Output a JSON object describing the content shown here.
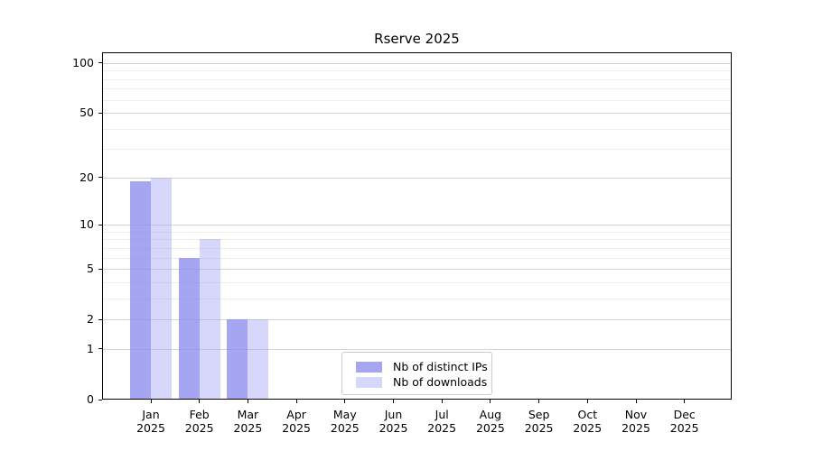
{
  "chart_data": {
    "type": "bar",
    "title": "Rserve 2025",
    "categories": [
      "Jan 2025",
      "Feb 2025",
      "Mar 2025",
      "Apr 2025",
      "May 2025",
      "Jun 2025",
      "Jul 2025",
      "Aug 2025",
      "Sep 2025",
      "Oct 2025",
      "Nov 2025",
      "Dec 2025"
    ],
    "series": [
      {
        "name": "Nb of distinct IPs",
        "color": "rgba(140,140,238,0.78)",
        "color_hint": "#a9a9f2",
        "values": [
          19,
          6,
          2,
          0,
          0,
          0,
          0,
          0,
          0,
          0,
          0,
          0
        ]
      },
      {
        "name": "Nb of downloads",
        "color": "rgba(160,160,245,0.42)",
        "color_hint": "#d9d9f8",
        "values": [
          20,
          8,
          2,
          0,
          0,
          0,
          0,
          0,
          0,
          0,
          0,
          0
        ]
      }
    ],
    "y_axis": {
      "scale": "log10(1+value)",
      "major_ticks": [
        0,
        1,
        2,
        5,
        10,
        20,
        50,
        100
      ],
      "minor_gridlines": [
        3,
        4,
        6,
        7,
        8,
        9,
        30,
        40,
        60,
        70,
        80,
        90
      ],
      "range": [
        0,
        116
      ]
    },
    "grid": true,
    "legend_position": "bottom-center-inside"
  }
}
